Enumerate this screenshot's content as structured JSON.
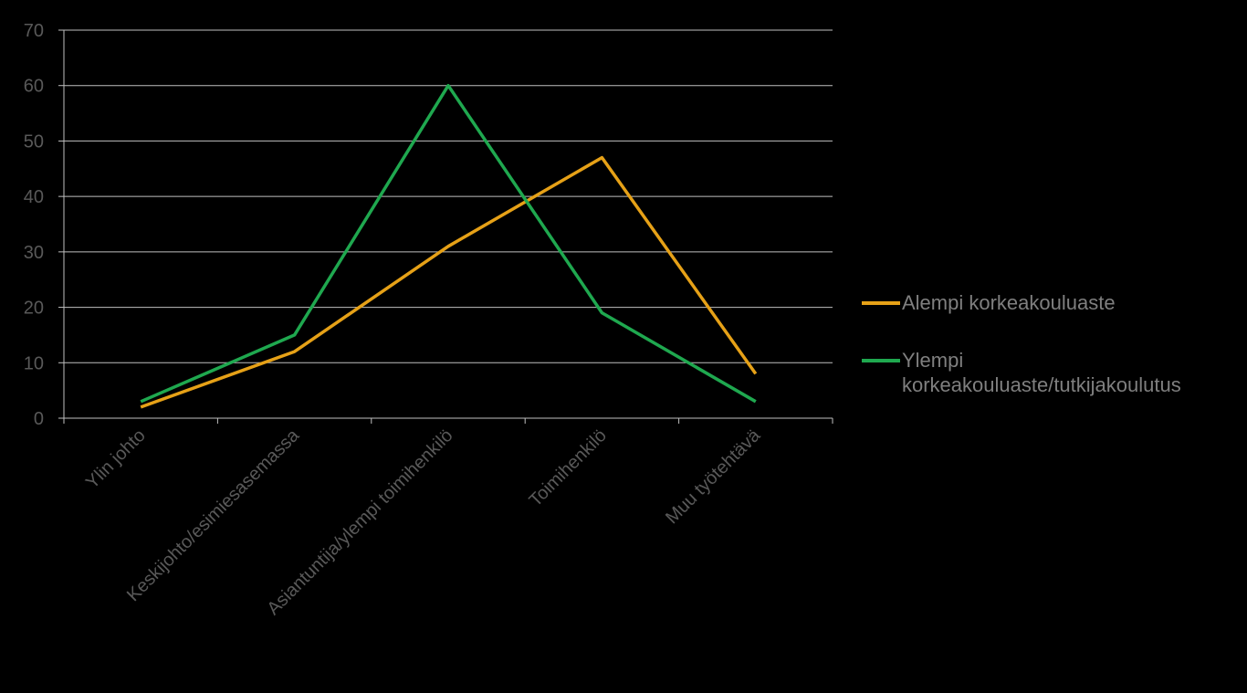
{
  "chart_data": {
    "type": "line",
    "categories": [
      "Ylin johto",
      "Keskijohto/esimiesasemassa",
      "Asiantuntija/ylempi toimihenkilö",
      "Toimihenkilö",
      "Muu työtehtävä"
    ],
    "series": [
      {
        "name": "Alempi korkeakouluaste",
        "values": [
          2,
          12,
          31,
          47,
          8
        ],
        "color": "#e6a117"
      },
      {
        "name": "Ylempi korkeakouluaste/tutkijakoulutus",
        "values": [
          3,
          15,
          60,
          19,
          3
        ],
        "color": "#1fa84f"
      }
    ],
    "ylim": [
      0,
      70
    ],
    "yticks": [
      0,
      10,
      20,
      30,
      40,
      50,
      60,
      70
    ],
    "grid": true,
    "legend_position": "right"
  }
}
